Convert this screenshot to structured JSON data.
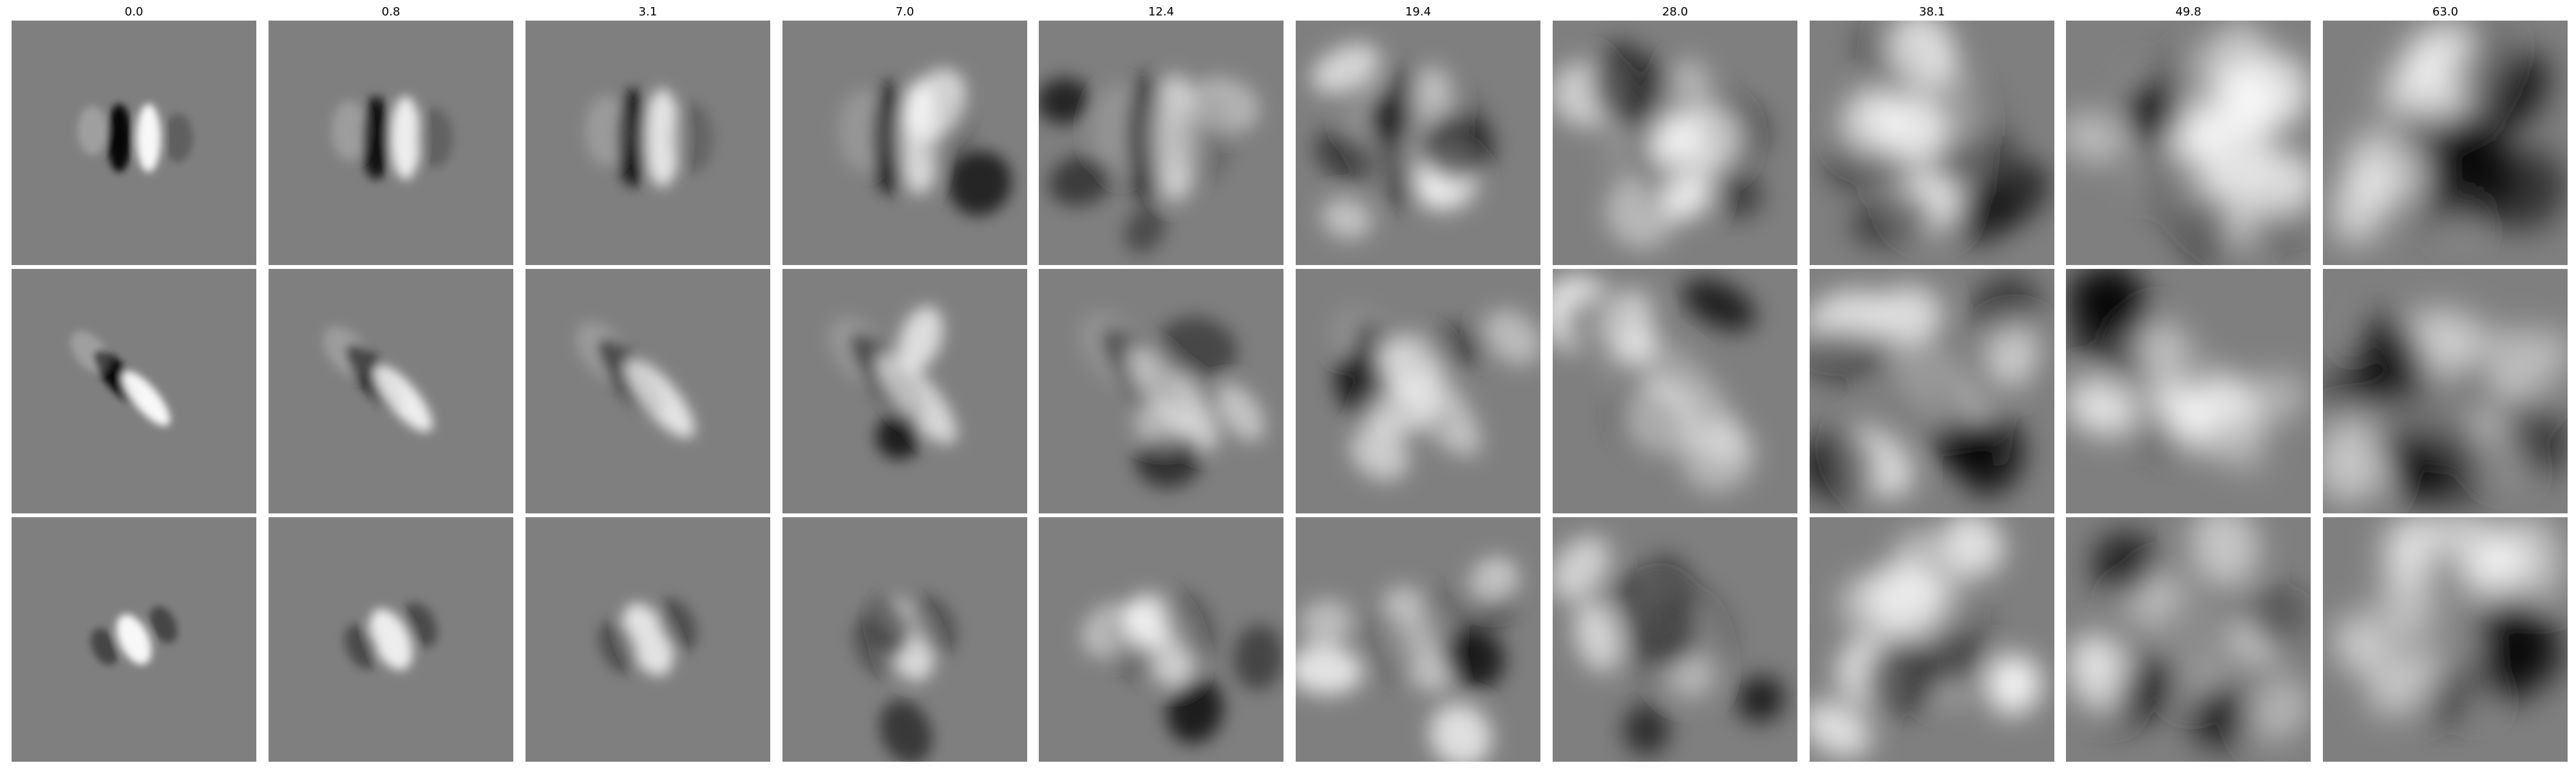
{
  "figure": {
    "columns": [
      {
        "label": "0.0"
      },
      {
        "label": "0.8"
      },
      {
        "label": "3.1"
      },
      {
        "label": "7.0"
      },
      {
        "label": "12.4"
      },
      {
        "label": "19.4"
      },
      {
        "label": "28.0"
      },
      {
        "label": "38.1"
      },
      {
        "label": "49.8"
      },
      {
        "label": "63.0"
      }
    ],
    "rows": 3,
    "colormap": "grayscale",
    "background_gray": "#7f7f7f"
  }
}
